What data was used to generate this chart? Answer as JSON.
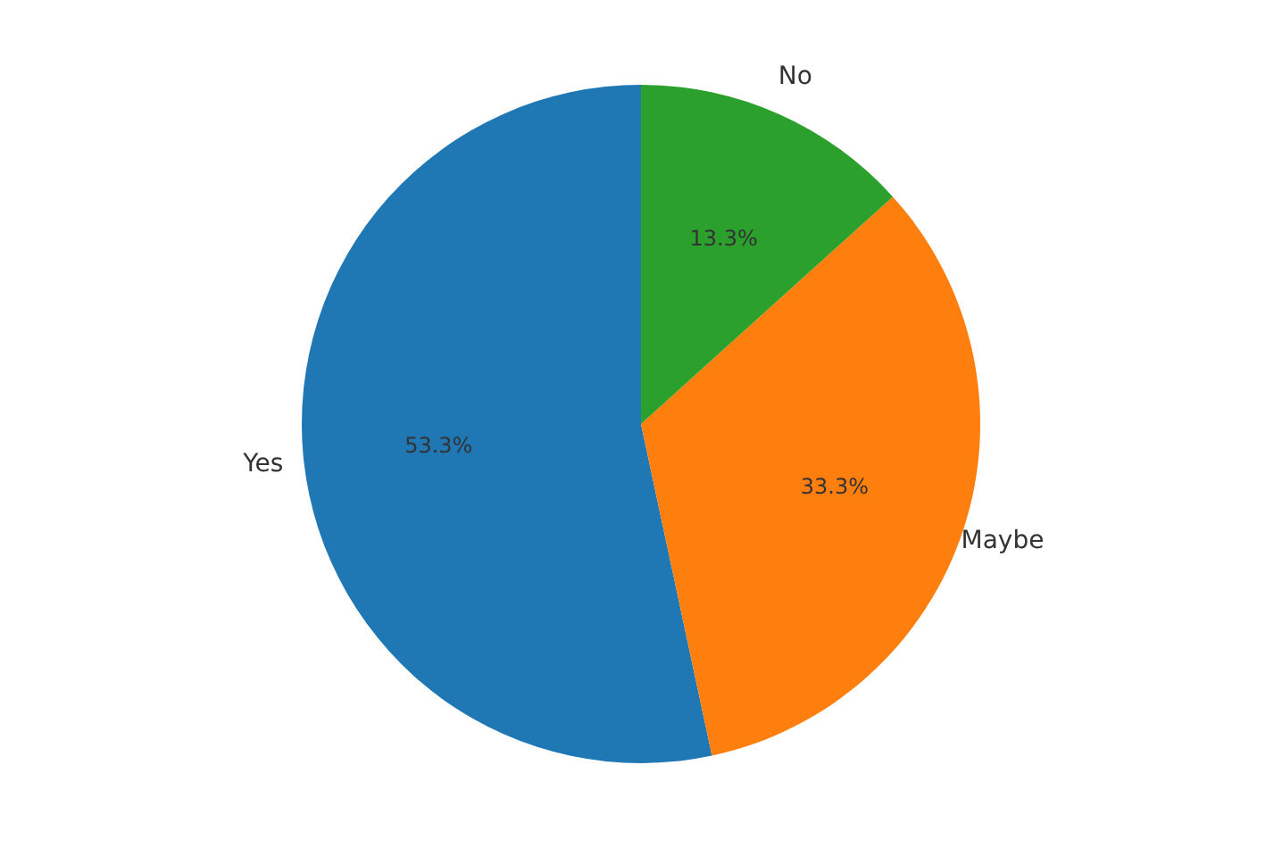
{
  "chart_data": {
    "type": "pie",
    "categories": [
      "Yes",
      "Maybe",
      "No"
    ],
    "values": [
      53.3,
      33.3,
      13.3
    ],
    "colors": [
      "#1f77b4",
      "#ff7f0e",
      "#2ca02c"
    ],
    "value_labels": [
      "53.3%",
      "33.3%",
      "13.3%"
    ],
    "legend": false
  }
}
